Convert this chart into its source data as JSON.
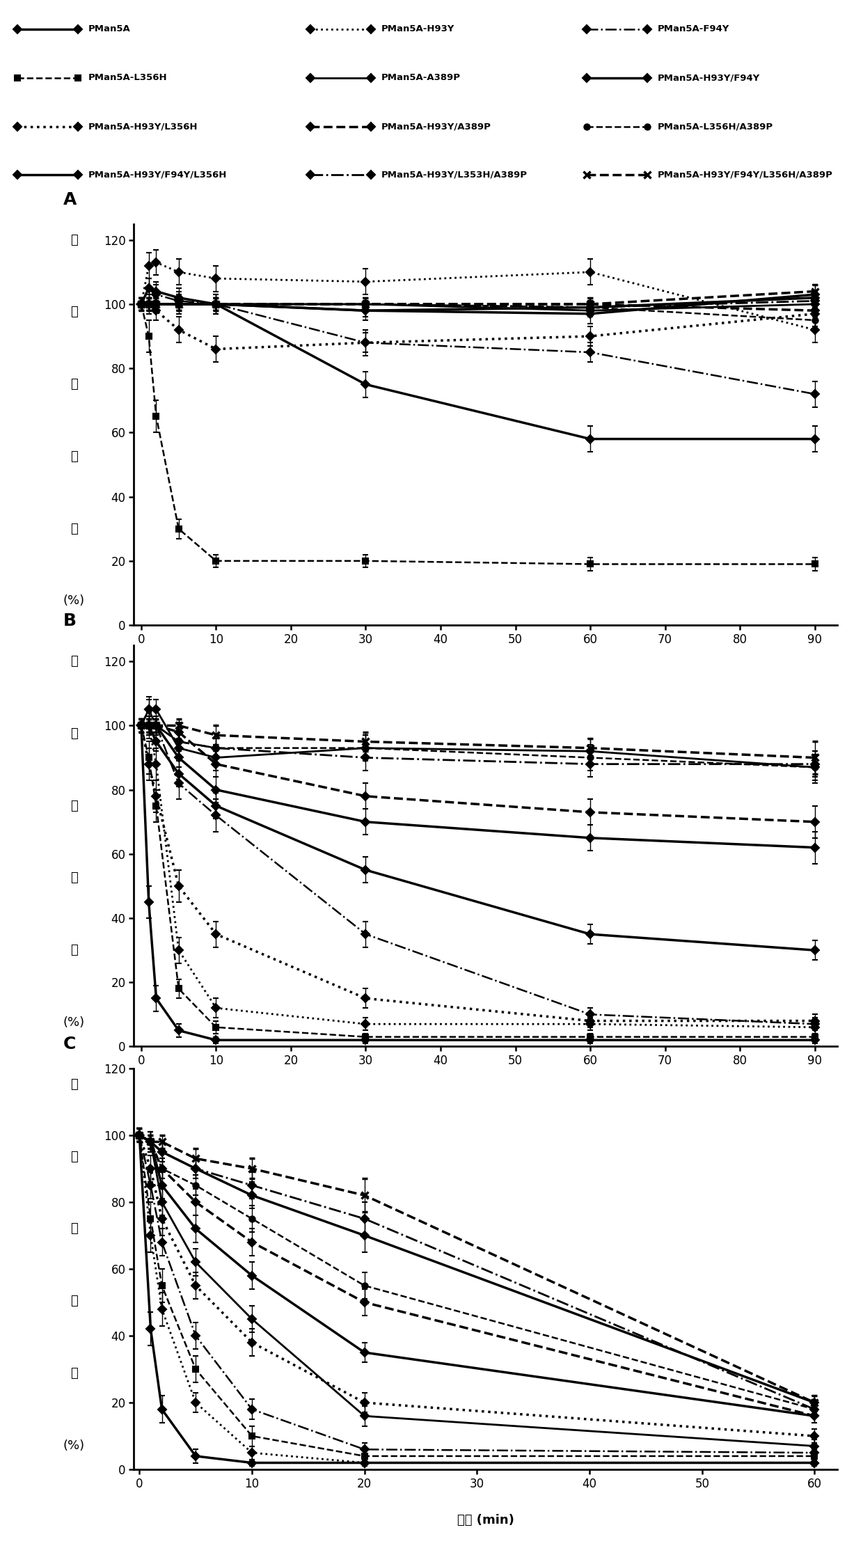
{
  "series_order": [
    "PMan5A",
    "PMan5A-H93Y",
    "PMan5A-F94Y",
    "PMan5A-L356H",
    "PMan5A-A389P",
    "PMan5A-H93Y/F94Y",
    "PMan5A-H93Y/L356H",
    "PMan5A-H93Y/A389P",
    "PMan5A-L356H/A389P",
    "PMan5A-H93Y/F94Y/L356H",
    "PMan5A-H93Y/L353H/A389P",
    "PMan5A-H93Y/F94Y/L356H/A389P"
  ],
  "legend_rows": [
    [
      "PMan5A",
      "PMan5A-H93Y",
      "PMan5A-F94Y"
    ],
    [
      "PMan5A-L356H",
      "PMan5A-A389P",
      "PMan5A-H93Y/F94Y"
    ],
    [
      "PMan5A-H93Y/L356H",
      "PMan5A-H93Y/A389P",
      "PMan5A-L356H/A389P"
    ],
    [
      "PMan5A-H93Y/F94Y/L356H",
      "PMan5A-H93Y/L353H/A389P",
      "PMan5A-H93Y/F94Y/L356H/A389P"
    ]
  ],
  "styles": {
    "PMan5A": {
      "ls": "solid",
      "marker": "D",
      "lw": 2.5,
      "ms": 6,
      "mew": 1.5
    },
    "PMan5A-H93Y": {
      "ls": "dotted",
      "marker": "D",
      "lw": 2.0,
      "ms": 6,
      "mew": 1.5
    },
    "PMan5A-F94Y": {
      "ls": "dashdot",
      "marker": "D",
      "lw": 1.8,
      "ms": 6,
      "mew": 1.5
    },
    "PMan5A-L356H": {
      "ls": "dashed",
      "marker": "s",
      "lw": 1.8,
      "ms": 6,
      "mew": 1.5
    },
    "PMan5A-A389P": {
      "ls": "solid",
      "marker": "D",
      "lw": 2.0,
      "ms": 6,
      "mew": 1.5
    },
    "PMan5A-H93Y/F94Y": {
      "ls": "solid",
      "marker": "D",
      "lw": 2.5,
      "ms": 6,
      "mew": 1.5
    },
    "PMan5A-H93Y/L356H": {
      "ls": "dotted",
      "marker": "D",
      "lw": 2.5,
      "ms": 6,
      "mew": 1.5
    },
    "PMan5A-H93Y/A389P": {
      "ls": "dashed",
      "marker": "D",
      "lw": 2.5,
      "ms": 6,
      "mew": 1.5
    },
    "PMan5A-L356H/A389P": {
      "ls": "dashed",
      "marker": "o",
      "lw": 1.8,
      "ms": 6,
      "mew": 1.5
    },
    "PMan5A-H93Y/F94Y/L356H": {
      "ls": "solid",
      "marker": "D",
      "lw": 2.5,
      "ms": 6,
      "mew": 1.5
    },
    "PMan5A-H93Y/L353H/A389P": {
      "ls": "dashdot",
      "marker": "D",
      "lw": 2.0,
      "ms": 6,
      "mew": 1.5
    },
    "PMan5A-H93Y/F94Y/L356H/A389P": {
      "ls": "dashed",
      "marker": "x",
      "lw": 2.5,
      "ms": 7,
      "mew": 2.5
    }
  },
  "panel_A": {
    "time": [
      0,
      1,
      2,
      5,
      10,
      30,
      60,
      90
    ],
    "xlim": [
      -1,
      93
    ],
    "ylim": [
      0,
      125
    ],
    "yticks": [
      0,
      20,
      40,
      60,
      80,
      100,
      120
    ],
    "xticks": [
      0,
      10,
      20,
      30,
      40,
      50,
      60,
      70,
      80,
      90
    ],
    "series": {
      "PMan5A": [
        100,
        100,
        100,
        100,
        100,
        75,
        58,
        58
      ],
      "PMan5A-H93Y": [
        100,
        112,
        113,
        110,
        108,
        107,
        110,
        92
      ],
      "PMan5A-F94Y": [
        100,
        105,
        103,
        101,
        100,
        88,
        85,
        72
      ],
      "PMan5A-L356H": [
        100,
        90,
        65,
        30,
        20,
        20,
        19,
        19
      ],
      "PMan5A-A389P": [
        100,
        100,
        100,
        100,
        100,
        100,
        98,
        100
      ],
      "PMan5A-H93Y/F94Y": [
        100,
        105,
        104,
        102,
        100,
        98,
        97,
        103
      ],
      "PMan5A-H93Y/L356H": [
        100,
        100,
        98,
        92,
        86,
        88,
        90,
        97
      ],
      "PMan5A-H93Y/A389P": [
        100,
        100,
        100,
        100,
        100,
        100,
        100,
        98
      ],
      "PMan5A-L356H/A389P": [
        100,
        100,
        100,
        100,
        100,
        100,
        99,
        95
      ],
      "PMan5A-H93Y/F94Y/L356H": [
        100,
        100,
        100,
        100,
        100,
        98,
        99,
        102
      ],
      "PMan5A-H93Y/L353H/A389P": [
        100,
        100,
        100,
        100,
        100,
        100,
        99,
        101
      ],
      "PMan5A-H93Y/F94Y/L356H/A389P": [
        100,
        100,
        100,
        100,
        100,
        100,
        100,
        104
      ]
    },
    "yerr": {
      "PMan5A": [
        2,
        2,
        2,
        3,
        3,
        4,
        4,
        4
      ],
      "PMan5A-H93Y": [
        2,
        4,
        4,
        4,
        4,
        4,
        4,
        4
      ],
      "PMan5A-F94Y": [
        2,
        3,
        3,
        3,
        3,
        3,
        3,
        4
      ],
      "PMan5A-L356H": [
        2,
        5,
        5,
        3,
        2,
        2,
        2,
        2
      ],
      "PMan5A-A389P": [
        2,
        2,
        2,
        2,
        2,
        2,
        2,
        2
      ],
      "PMan5A-H93Y/F94Y": [
        2,
        3,
        3,
        3,
        3,
        3,
        3,
        3
      ],
      "PMan5A-H93Y/L356H": [
        2,
        3,
        3,
        4,
        4,
        4,
        3,
        4
      ],
      "PMan5A-H93Y/A389P": [
        2,
        2,
        2,
        2,
        2,
        2,
        2,
        2
      ],
      "PMan5A-L356H/A389P": [
        2,
        2,
        2,
        2,
        2,
        2,
        2,
        2
      ],
      "PMan5A-H93Y/F94Y/L356H": [
        2,
        2,
        2,
        2,
        2,
        2,
        2,
        2
      ],
      "PMan5A-H93Y/L353H/A389P": [
        2,
        2,
        2,
        2,
        2,
        2,
        2,
        2
      ],
      "PMan5A-H93Y/F94Y/L356H/A389P": [
        2,
        2,
        2,
        2,
        2,
        2,
        2,
        2
      ]
    }
  },
  "panel_B": {
    "time": [
      0,
      1,
      2,
      5,
      10,
      30,
      60,
      90
    ],
    "xlim": [
      -1,
      93
    ],
    "ylim": [
      0,
      125
    ],
    "yticks": [
      0,
      20,
      40,
      60,
      80,
      100,
      120
    ],
    "xticks": [
      0,
      10,
      20,
      30,
      40,
      50,
      60,
      70,
      80,
      90
    ],
    "series": {
      "PMan5A": [
        100,
        45,
        15,
        5,
        2,
        2,
        2,
        2
      ],
      "PMan5A-H93Y": [
        100,
        100,
        88,
        30,
        12,
        7,
        7,
        6
      ],
      "PMan5A-F94Y": [
        100,
        105,
        100,
        82,
        72,
        35,
        10,
        7
      ],
      "PMan5A-L356H": [
        100,
        90,
        75,
        18,
        6,
        3,
        3,
        3
      ],
      "PMan5A-A389P": [
        100,
        105,
        105,
        93,
        90,
        93,
        92,
        87
      ],
      "PMan5A-H93Y/F94Y": [
        100,
        100,
        95,
        85,
        75,
        55,
        35,
        30
      ],
      "PMan5A-H93Y/L356H": [
        100,
        88,
        78,
        50,
        35,
        15,
        8,
        8
      ],
      "PMan5A-H93Y/A389P": [
        100,
        100,
        100,
        98,
        88,
        78,
        73,
        70
      ],
      "PMan5A-L356H/A389P": [
        100,
        100,
        100,
        95,
        93,
        93,
        90,
        87
      ],
      "PMan5A-H93Y/F94Y/L356H": [
        100,
        100,
        100,
        90,
        80,
        70,
        65,
        62
      ],
      "PMan5A-H93Y/L353H/A389P": [
        100,
        100,
        100,
        95,
        93,
        90,
        88,
        88
      ],
      "PMan5A-H93Y/F94Y/L356H/A389P": [
        100,
        100,
        100,
        100,
        97,
        95,
        93,
        90
      ]
    },
    "yerr": {
      "PMan5A": [
        2,
        5,
        4,
        2,
        1,
        1,
        1,
        1
      ],
      "PMan5A-H93Y": [
        2,
        4,
        5,
        4,
        3,
        2,
        2,
        2
      ],
      "PMan5A-F94Y": [
        2,
        4,
        3,
        5,
        5,
        4,
        2,
        2
      ],
      "PMan5A-L356H": [
        2,
        5,
        5,
        3,
        2,
        1,
        1,
        1
      ],
      "PMan5A-A389P": [
        2,
        3,
        3,
        3,
        4,
        4,
        4,
        5
      ],
      "PMan5A-H93Y/F94Y": [
        2,
        3,
        3,
        4,
        4,
        4,
        3,
        3
      ],
      "PMan5A-H93Y/L356H": [
        2,
        5,
        5,
        5,
        4,
        3,
        2,
        2
      ],
      "PMan5A-H93Y/A389P": [
        2,
        2,
        2,
        3,
        4,
        4,
        4,
        5
      ],
      "PMan5A-L356H/A389P": [
        2,
        2,
        2,
        3,
        3,
        4,
        4,
        4
      ],
      "PMan5A-H93Y/F94Y/L356H": [
        2,
        2,
        2,
        3,
        4,
        4,
        4,
        5
      ],
      "PMan5A-H93Y/L353H/A389P": [
        2,
        2,
        2,
        3,
        3,
        4,
        4,
        4
      ],
      "PMan5A-H93Y/F94Y/L356H/A389P": [
        2,
        2,
        2,
        2,
        3,
        3,
        3,
        5
      ]
    }
  },
  "panel_C": {
    "time": [
      0,
      1,
      2,
      5,
      10,
      20,
      60
    ],
    "xlim": [
      -0.5,
      62
    ],
    "ylim": [
      0,
      120
    ],
    "yticks": [
      0,
      20,
      40,
      60,
      80,
      100,
      120
    ],
    "xticks": [
      0,
      10,
      20,
      30,
      40,
      50,
      60
    ],
    "series": {
      "PMan5A": [
        100,
        42,
        18,
        4,
        2,
        2,
        2
      ],
      "PMan5A-H93Y": [
        100,
        70,
        48,
        20,
        5,
        2,
        2
      ],
      "PMan5A-F94Y": [
        100,
        85,
        68,
        40,
        18,
        6,
        5
      ],
      "PMan5A-L356H": [
        100,
        75,
        55,
        30,
        10,
        4,
        4
      ],
      "PMan5A-A389P": [
        100,
        98,
        80,
        62,
        45,
        16,
        7
      ],
      "PMan5A-H93Y/F94Y": [
        100,
        98,
        85,
        72,
        58,
        35,
        16
      ],
      "PMan5A-H93Y/L356H": [
        100,
        90,
        75,
        55,
        38,
        20,
        10
      ],
      "PMan5A-H93Y/A389P": [
        100,
        98,
        90,
        80,
        68,
        50,
        16
      ],
      "PMan5A-L356H/A389P": [
        100,
        98,
        90,
        85,
        75,
        55,
        18
      ],
      "PMan5A-H93Y/F94Y/L356H": [
        100,
        98,
        95,
        90,
        82,
        70,
        20
      ],
      "PMan5A-H93Y/L353H/A389P": [
        100,
        98,
        95,
        90,
        85,
        75,
        18
      ],
      "PMan5A-H93Y/F94Y/L356H/A389P": [
        100,
        98,
        98,
        93,
        90,
        82,
        20
      ]
    },
    "yerr": {
      "PMan5A": [
        2,
        5,
        4,
        2,
        1,
        1,
        1
      ],
      "PMan5A-H93Y": [
        2,
        5,
        5,
        3,
        2,
        1,
        1
      ],
      "PMan5A-F94Y": [
        2,
        4,
        4,
        4,
        3,
        2,
        1
      ],
      "PMan5A-L356H": [
        2,
        5,
        5,
        4,
        3,
        2,
        1
      ],
      "PMan5A-A389P": [
        2,
        3,
        4,
        4,
        4,
        3,
        2
      ],
      "PMan5A-H93Y/F94Y": [
        2,
        3,
        4,
        4,
        4,
        3,
        2
      ],
      "PMan5A-H93Y/L356H": [
        2,
        4,
        5,
        4,
        4,
        3,
        2
      ],
      "PMan5A-H93Y/A389P": [
        2,
        3,
        3,
        4,
        4,
        4,
        2
      ],
      "PMan5A-L356H/A389P": [
        2,
        3,
        3,
        3,
        4,
        4,
        2
      ],
      "PMan5A-H93Y/F94Y/L356H": [
        2,
        2,
        3,
        3,
        4,
        5,
        2
      ],
      "PMan5A-H93Y/L353H/A389P": [
        2,
        2,
        3,
        3,
        4,
        5,
        2
      ],
      "PMan5A-H93Y/F94Y/L356H/A389P": [
        2,
        2,
        2,
        3,
        3,
        5,
        2
      ]
    }
  },
  "ylabel_chars": [
    "相",
    "对",
    "酶",
    "活",
    "力",
    "(%)"
  ],
  "xlabel": "时间 (min)",
  "panel_labels": [
    "A",
    "B",
    "C"
  ],
  "fig_width": 12.4,
  "fig_height": 22.34
}
